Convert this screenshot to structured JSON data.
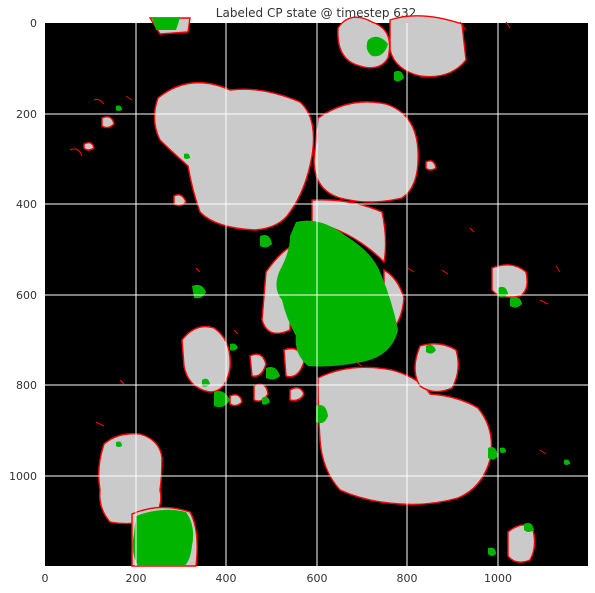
{
  "title": "Labeled CP state @ timestep 632",
  "x_ticks": [
    "0",
    "200",
    "400",
    "600",
    "800",
    "1000"
  ],
  "y_ticks": [
    "0",
    "200",
    "400",
    "600",
    "800",
    "1000"
  ],
  "colors": {
    "background": "#000000",
    "cell": "#cacaca",
    "boundary": "#ff0000",
    "label": "#00b400",
    "grid": "#ffffff"
  }
}
